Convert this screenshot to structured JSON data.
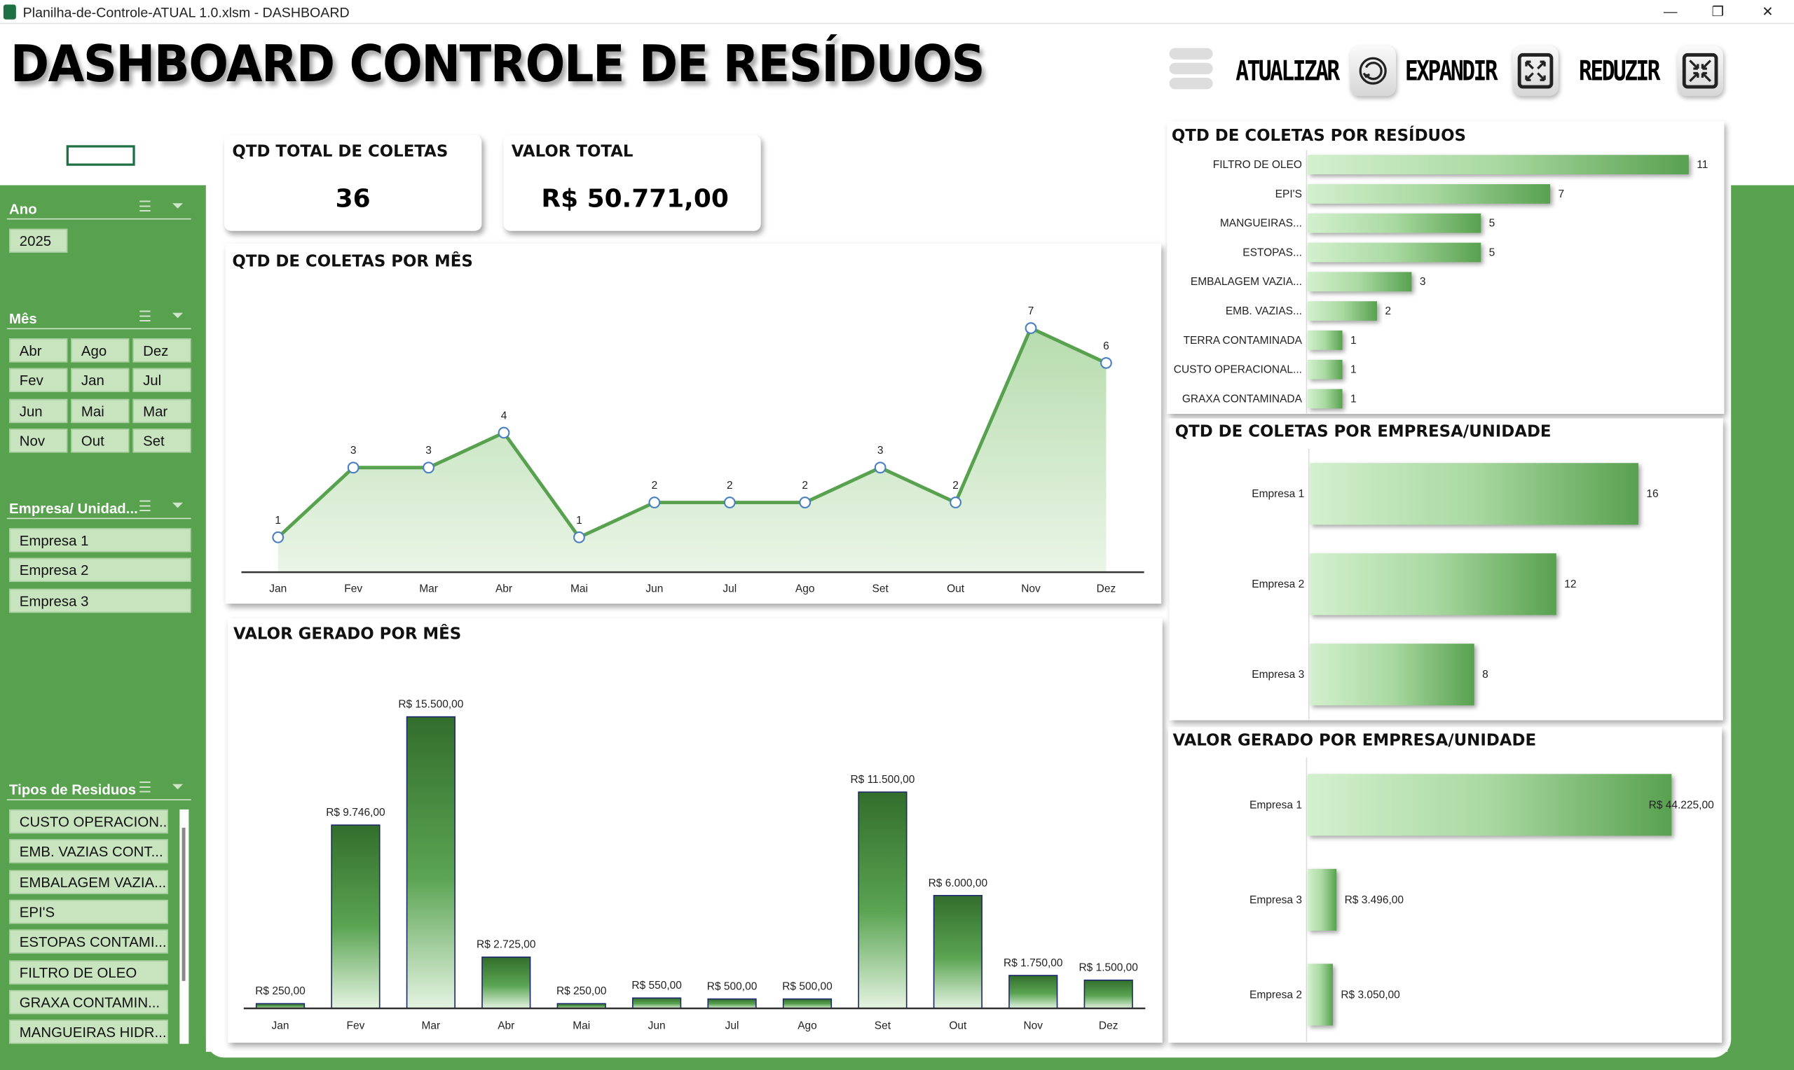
{
  "window": {
    "title": "Planilha-de-Controle-ATUAL 1.0.xlsm - DASHBOARD",
    "minimize": "—",
    "restore": "❐",
    "close": "✕"
  },
  "header": {
    "title": "DASHBOARD CONTROLE DE RESÍDUOS",
    "buttons": [
      {
        "label": "ATUALIZAR",
        "icon": "refresh-icon"
      },
      {
        "label": "EXPANDIR",
        "icon": "expand-icon"
      },
      {
        "label": "REDUZIR",
        "icon": "collapse-icon"
      }
    ]
  },
  "colors": {
    "accent": "#58a14f",
    "bar_dark": "#3a7a33",
    "bar_light": "#cdeec8",
    "button": "#c7e4be"
  },
  "slicers": {
    "ano": {
      "title": "Ano",
      "items": [
        "2025"
      ]
    },
    "mes": {
      "title": "Mês",
      "items": [
        "Abr",
        "Ago",
        "Dez",
        "Fev",
        "Jan",
        "Jul",
        "Jun",
        "Mai",
        "Mar",
        "Nov",
        "Out",
        "Set"
      ]
    },
    "empresa": {
      "title": "Empresa/ Unidad...",
      "items": [
        "Empresa 1",
        "Empresa 2",
        "Empresa 3"
      ]
    },
    "tipos": {
      "title": "Tipos de Residuos",
      "items": [
        "CUSTO OPERACION...",
        "EMB. VAZIAS CONT...",
        "EMBALAGEM VAZIA...",
        "EPI'S",
        "ESTOPAS CONTAMI...",
        "FILTRO DE OLEO",
        "GRAXA CONTAMIN...",
        "MANGUEIRAS HIDR..."
      ]
    }
  },
  "kpis": [
    {
      "label": "QTD TOTAL DE COLETAS",
      "value": "36"
    },
    {
      "label": "VALOR TOTAL",
      "value": "R$ 50.771,00"
    }
  ],
  "chart_data": [
    {
      "type": "area",
      "title": "QTD DE COLETAS POR MÊS",
      "categories": [
        "Jan",
        "Fev",
        "Mar",
        "Abr",
        "Mai",
        "Jun",
        "Jul",
        "Ago",
        "Set",
        "Out",
        "Nov",
        "Dez"
      ],
      "values": [
        1,
        3,
        3,
        4,
        1,
        2,
        2,
        2,
        3,
        2,
        7,
        6
      ],
      "ylim": [
        0,
        7
      ],
      "grid": false
    },
    {
      "type": "bar",
      "title": "VALOR GERADO POR MÊS",
      "categories": [
        "Jan",
        "Fev",
        "Mar",
        "Abr",
        "Mai",
        "Jun",
        "Jul",
        "Ago",
        "Set",
        "Out",
        "Nov",
        "Dez"
      ],
      "values": [
        250,
        9746,
        15500,
        2725,
        250,
        550,
        500,
        500,
        11500,
        6000,
        1750,
        1500
      ],
      "labels": [
        "R$ 250,00",
        "R$ 9.746,00",
        "R$ 15.500,00",
        "R$ 2.725,00",
        "R$ 250,00",
        "R$ 550,00",
        "R$ 500,00",
        "R$ 500,00",
        "R$ 11.500,00",
        "R$ 6.000,00",
        "R$ 1.750,00",
        "R$ 1.500,00"
      ],
      "ylim": [
        0,
        15500
      ]
    },
    {
      "type": "bar",
      "orientation": "horizontal",
      "title": "QTD DE COLETAS POR RESÍDUOS",
      "categories": [
        "FILTRO DE OLEO",
        "EPI'S",
        "MANGUEIRAS...",
        "ESTOPAS...",
        "EMBALAGEM VAZIA...",
        "EMB. VAZIAS...",
        "TERRA CONTAMINADA",
        "CUSTO OPERACIONAL...",
        "GRAXA CONTAMINADA"
      ],
      "values": [
        11,
        7,
        5,
        5,
        3,
        2,
        1,
        1,
        1
      ],
      "labels": [
        "11",
        "7",
        "5",
        "5",
        "3",
        "2",
        "1",
        "1",
        "1"
      ],
      "ylim": [
        0,
        11
      ]
    },
    {
      "type": "bar",
      "orientation": "horizontal",
      "title": "QTD DE COLETAS POR EMPRESA/UNIDADE",
      "categories": [
        "Empresa 1",
        "Empresa 2",
        "Empresa 3"
      ],
      "values": [
        16,
        12,
        8
      ],
      "labels": [
        "16",
        "12",
        "8"
      ],
      "ylim": [
        0,
        16
      ]
    },
    {
      "type": "bar",
      "orientation": "horizontal",
      "title": "VALOR GERADO POR EMPRESA/UNIDADE",
      "categories": [
        "Empresa 1",
        "Empresa 3",
        "Empresa 2"
      ],
      "values": [
        44225,
        3496,
        3050
      ],
      "labels": [
        "R$ 44.225,00",
        "R$ 3.496,00",
        "R$ 3.050,00"
      ],
      "ylim": [
        0,
        44225
      ]
    }
  ]
}
